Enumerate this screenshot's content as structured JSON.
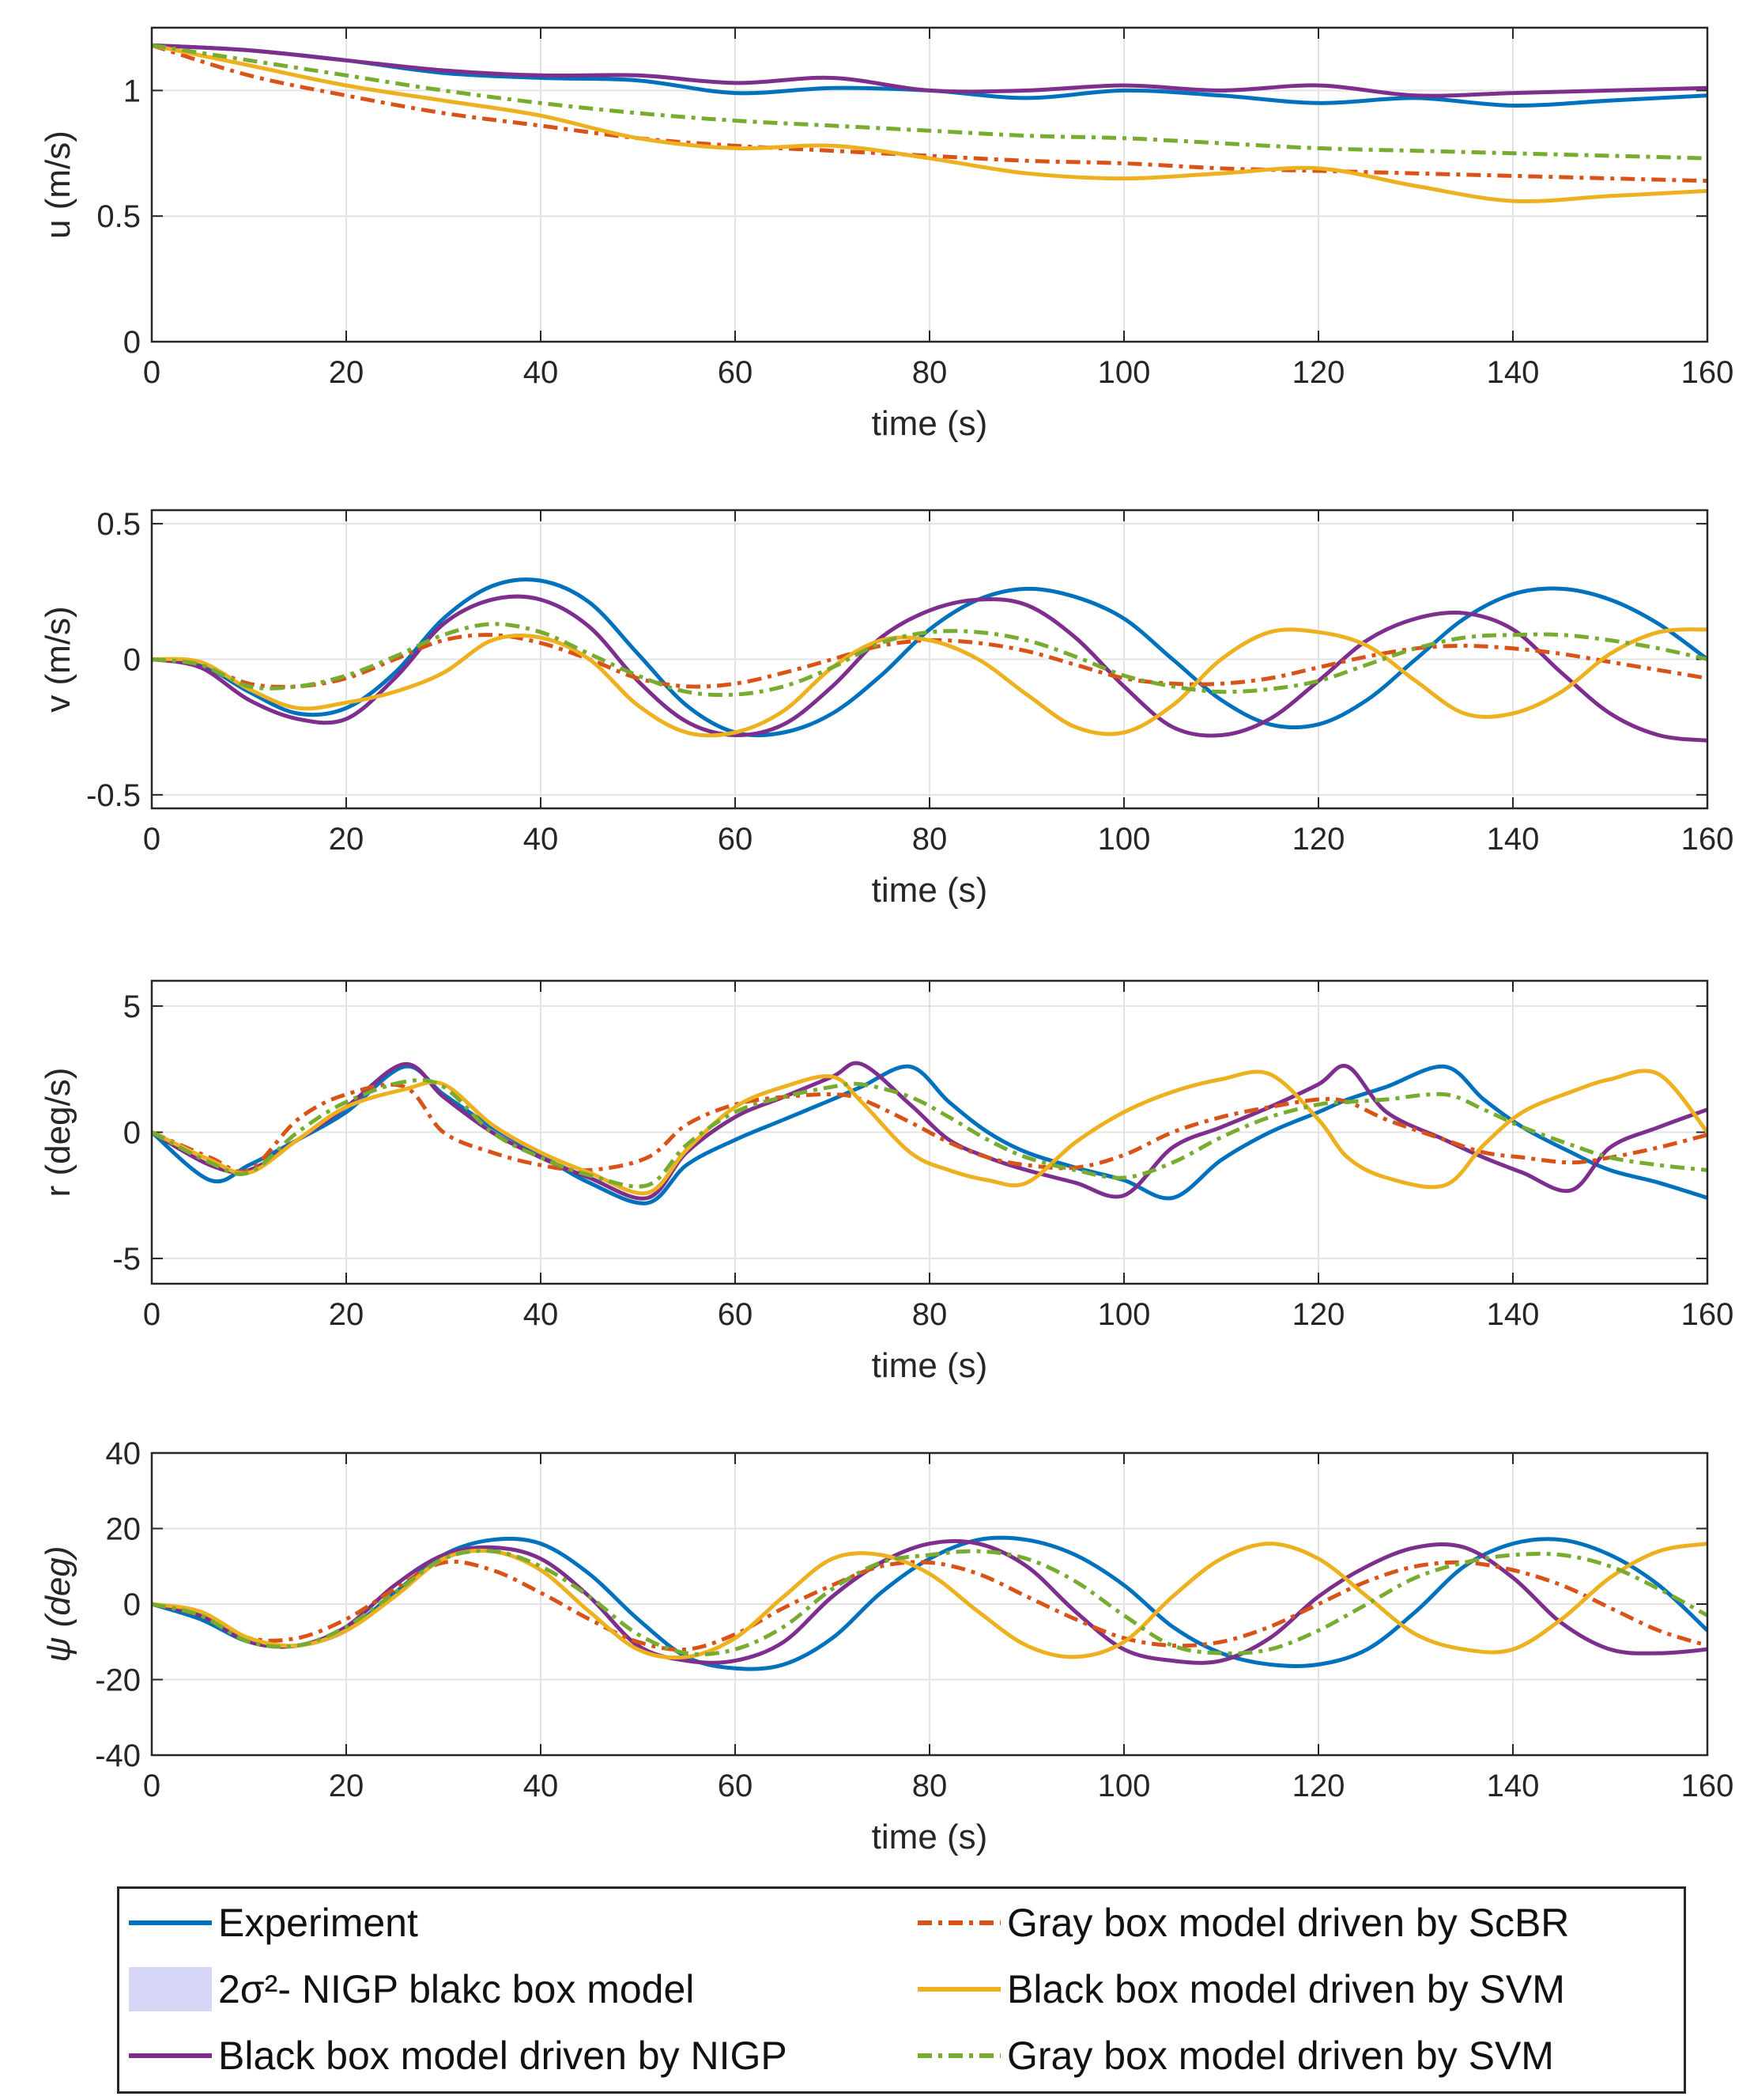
{
  "chart_data": [
    {
      "type": "line",
      "id": "u",
      "ylabel": "u (m/s)",
      "xlabel": "time (s)",
      "xlim": [
        0,
        160
      ],
      "ylim": [
        0,
        1.25
      ],
      "xticks": [
        "0",
        "20",
        "40",
        "60",
        "80",
        "100",
        "120",
        "140",
        "160"
      ],
      "yticks": [
        {
          "v": 0,
          "t": "0"
        },
        {
          "v": 0.5,
          "t": "0.5"
        },
        {
          "v": 1,
          "t": "1"
        }
      ],
      "grid": true,
      "x": [
        0,
        10,
        20,
        30,
        40,
        50,
        60,
        70,
        80,
        90,
        100,
        110,
        120,
        130,
        140,
        150,
        160
      ],
      "series": [
        {
          "name": "Experiment",
          "values": [
            1.18,
            1.16,
            1.12,
            1.07,
            1.05,
            1.04,
            0.99,
            1.01,
            1.0,
            0.97,
            1.0,
            0.98,
            0.95,
            0.97,
            0.94,
            0.96,
            0.98
          ]
        },
        {
          "name": "Black box model driven by NIGP",
          "values": [
            1.18,
            1.16,
            1.12,
            1.08,
            1.06,
            1.06,
            1.03,
            1.05,
            1.0,
            1.0,
            1.02,
            1.0,
            1.02,
            0.98,
            0.99,
            1.0,
            1.01
          ]
        },
        {
          "name": "Gray box model driven by ScBR",
          "values": [
            1.18,
            1.06,
            0.98,
            0.91,
            0.86,
            0.81,
            0.78,
            0.76,
            0.74,
            0.72,
            0.71,
            0.69,
            0.68,
            0.67,
            0.66,
            0.65,
            0.64
          ]
        },
        {
          "name": "Black box model driven by SVM",
          "values": [
            1.18,
            1.1,
            1.02,
            0.96,
            0.9,
            0.81,
            0.77,
            0.78,
            0.73,
            0.67,
            0.65,
            0.67,
            0.69,
            0.62,
            0.56,
            0.58,
            0.6
          ]
        },
        {
          "name": "Gray box model driven by SVM",
          "values": [
            1.18,
            1.12,
            1.06,
            1.0,
            0.95,
            0.91,
            0.88,
            0.86,
            0.84,
            0.82,
            0.81,
            0.79,
            0.77,
            0.76,
            0.75,
            0.74,
            0.73
          ]
        }
      ]
    },
    {
      "type": "line",
      "id": "v",
      "ylabel": "v (m/s)",
      "xlabel": "time (s)",
      "xlim": [
        0,
        160
      ],
      "ylim": [
        -0.55,
        0.55
      ],
      "xticks": [
        "0",
        "20",
        "40",
        "60",
        "80",
        "100",
        "120",
        "140",
        "160"
      ],
      "yticks": [
        {
          "v": -0.5,
          "t": "-0.5"
        },
        {
          "v": 0,
          "t": "0"
        },
        {
          "v": 0.5,
          "t": "0.5"
        }
      ],
      "grid": true,
      "x": [
        0,
        5,
        10,
        15,
        20,
        25,
        30,
        35,
        40,
        45,
        50,
        55,
        60,
        65,
        70,
        75,
        80,
        85,
        90,
        95,
        100,
        105,
        110,
        115,
        120,
        125,
        130,
        135,
        140,
        145,
        150,
        155,
        160
      ],
      "series": [
        {
          "name": "Experiment",
          "values": [
            0,
            -0.02,
            -0.12,
            -0.2,
            -0.18,
            -0.05,
            0.15,
            0.27,
            0.29,
            0.21,
            0.02,
            -0.17,
            -0.27,
            -0.27,
            -0.2,
            -0.06,
            0.11,
            0.22,
            0.26,
            0.23,
            0.15,
            0.0,
            -0.15,
            -0.24,
            -0.24,
            -0.15,
            0.0,
            0.15,
            0.24,
            0.26,
            0.22,
            0.13,
            0.0
          ]
        },
        {
          "name": "Black box model driven by NIGP",
          "values": [
            0,
            -0.03,
            -0.15,
            -0.22,
            -0.22,
            -0.07,
            0.13,
            0.22,
            0.22,
            0.12,
            -0.08,
            -0.23,
            -0.28,
            -0.24,
            -0.1,
            0.08,
            0.18,
            0.22,
            0.2,
            0.08,
            -0.1,
            -0.25,
            -0.28,
            -0.22,
            -0.08,
            0.07,
            0.15,
            0.17,
            0.11,
            -0.05,
            -0.2,
            -0.28,
            -0.3
          ]
        },
        {
          "name": "Gray box model driven by ScBR",
          "values": [
            0,
            -0.02,
            -0.09,
            -0.1,
            -0.07,
            0.0,
            0.07,
            0.09,
            0.06,
            0.0,
            -0.07,
            -0.1,
            -0.09,
            -0.05,
            0.0,
            0.05,
            0.07,
            0.06,
            0.03,
            -0.02,
            -0.07,
            -0.09,
            -0.09,
            -0.07,
            -0.03,
            0.01,
            0.04,
            0.05,
            0.04,
            0.02,
            -0.01,
            -0.04,
            -0.07
          ]
        },
        {
          "name": "Black box model driven by SVM",
          "values": [
            0,
            -0.01,
            -0.11,
            -0.18,
            -0.16,
            -0.12,
            -0.05,
            0.07,
            0.08,
            0.0,
            -0.17,
            -0.27,
            -0.27,
            -0.19,
            -0.03,
            0.07,
            0.07,
            0.0,
            -0.13,
            -0.25,
            -0.27,
            -0.17,
            0.0,
            0.1,
            0.1,
            0.05,
            -0.08,
            -0.2,
            -0.2,
            -0.12,
            0.02,
            0.1,
            0.11
          ]
        },
        {
          "name": "Gray box model driven by SVM",
          "values": [
            0,
            -0.02,
            -0.1,
            -0.1,
            -0.06,
            0.01,
            0.09,
            0.13,
            0.1,
            0.02,
            -0.06,
            -0.12,
            -0.13,
            -0.1,
            -0.03,
            0.06,
            0.1,
            0.1,
            0.07,
            0.01,
            -0.06,
            -0.1,
            -0.12,
            -0.11,
            -0.08,
            -0.02,
            0.04,
            0.08,
            0.09,
            0.09,
            0.07,
            0.04,
            0.0
          ]
        }
      ]
    },
    {
      "type": "line",
      "id": "r",
      "ylabel": "r (deg/s)",
      "xlabel": "time (s)",
      "xlim": [
        0,
        160
      ],
      "ylim": [
        -6,
        6
      ],
      "xticks": [
        "0",
        "20",
        "40",
        "60",
        "80",
        "100",
        "120",
        "140",
        "160"
      ],
      "yticks": [
        {
          "v": -5,
          "t": "-5"
        },
        {
          "v": 0,
          "t": "0"
        },
        {
          "v": 5,
          "t": "5"
        }
      ],
      "grid": true,
      "x": [
        0,
        6,
        10,
        15,
        20,
        26,
        30,
        35,
        40,
        45,
        51,
        55,
        60,
        65,
        70,
        73,
        78,
        82,
        86,
        90,
        95,
        100,
        105,
        110,
        115,
        120,
        123,
        127,
        133,
        137,
        141,
        146,
        150,
        155,
        160
      ],
      "series": [
        {
          "name": "Experiment",
          "values": [
            0,
            -1.9,
            -1.3,
            -0.3,
            0.8,
            2.6,
            1.5,
            0.2,
            -0.9,
            -2.0,
            -2.8,
            -1.3,
            -0.3,
            0.5,
            1.3,
            1.8,
            2.6,
            1.2,
            0.0,
            -0.8,
            -1.4,
            -1.9,
            -2.6,
            -1.1,
            0.0,
            0.8,
            1.3,
            1.8,
            2.6,
            1.3,
            0.2,
            -0.8,
            -1.5,
            -2.0,
            -2.6
          ]
        },
        {
          "name": "Black box model driven by NIGP",
          "values": [
            0,
            -1.3,
            -1.5,
            -0.3,
            1.0,
            2.7,
            1.4,
            0.0,
            -1.0,
            -1.8,
            -2.6,
            -0.8,
            0.6,
            1.4,
            2.2,
            2.7,
            1.1,
            -0.3,
            -1.0,
            -1.5,
            -2.0,
            -2.5,
            -0.6,
            0.2,
            1.0,
            1.9,
            2.6,
            0.8,
            -0.3,
            -1.0,
            -1.6,
            -2.3,
            -0.6,
            0.2,
            0.9
          ]
        },
        {
          "name": "Gray box model driven by ScBR",
          "values": [
            0,
            -1.0,
            -1.5,
            0.5,
            1.5,
            1.8,
            0.0,
            -0.8,
            -1.3,
            -1.5,
            -1.0,
            0.3,
            1.1,
            1.4,
            1.5,
            1.3,
            0.4,
            -0.4,
            -1.0,
            -1.3,
            -1.4,
            -0.9,
            0.0,
            0.6,
            1.0,
            1.3,
            1.2,
            0.5,
            -0.3,
            -0.8,
            -1.0,
            -1.2,
            -1.0,
            -0.6,
            -0.1
          ]
        },
        {
          "name": "Black box model driven by SVM",
          "values": [
            0,
            -1.1,
            -1.6,
            -0.3,
            1.0,
            1.7,
            1.9,
            0.3,
            -0.8,
            -1.6,
            -2.4,
            -0.7,
            1.0,
            1.8,
            2.2,
            1.2,
            -0.8,
            -1.5,
            -1.9,
            -2.0,
            -0.4,
            0.8,
            1.6,
            2.1,
            2.3,
            0.5,
            -1.0,
            -1.8,
            -2.1,
            -0.5,
            0.8,
            1.6,
            2.1,
            2.3,
            0.0
          ]
        },
        {
          "name": "Gray box model driven by SVM",
          "values": [
            0,
            -1.2,
            -1.6,
            0.0,
            1.2,
            2.0,
            1.8,
            0.0,
            -1.0,
            -1.7,
            -2.1,
            -0.5,
            0.8,
            1.4,
            1.8,
            1.9,
            1.4,
            0.6,
            -0.3,
            -1.0,
            -1.5,
            -1.8,
            -1.2,
            -0.2,
            0.6,
            1.1,
            1.2,
            1.3,
            1.5,
            0.9,
            0.2,
            -0.5,
            -1.0,
            -1.3,
            -1.5
          ]
        }
      ]
    },
    {
      "type": "line",
      "id": "psi",
      "ylabel": "ψ (deg)",
      "xlabel": "time (s)",
      "xlim": [
        0,
        160
      ],
      "ylim": [
        -40,
        40
      ],
      "xticks": [
        "0",
        "20",
        "40",
        "60",
        "80",
        "100",
        "120",
        "140",
        "160"
      ],
      "yticks": [
        {
          "v": -40,
          "t": "-40"
        },
        {
          "v": -20,
          "t": "-20"
        },
        {
          "v": 0,
          "t": "0"
        },
        {
          "v": 20,
          "t": "20"
        },
        {
          "v": 40,
          "t": "40"
        }
      ],
      "grid": true,
      "x": [
        0,
        5,
        10,
        15,
        20,
        25,
        30,
        35,
        40,
        45,
        50,
        55,
        60,
        65,
        70,
        75,
        80,
        85,
        90,
        95,
        100,
        105,
        110,
        115,
        120,
        125,
        130,
        135,
        140,
        145,
        150,
        155,
        160
      ],
      "series": [
        {
          "name": "Experiment",
          "values": [
            0,
            -4,
            -10,
            -11,
            -7,
            3,
            13,
            17,
            16,
            8,
            -4,
            -14,
            -17,
            -16,
            -9,
            3,
            12,
            17,
            17,
            13,
            5,
            -6,
            -13,
            -16,
            -16,
            -12,
            -2,
            10,
            16,
            17,
            13,
            5,
            -7
          ]
        },
        {
          "name": "Black box model driven by NIGP",
          "values": [
            0,
            -3,
            -10,
            -11,
            -6,
            5,
            13,
            15,
            12,
            2,
            -11,
            -15,
            -15,
            -10,
            2,
            11,
            16,
            16,
            10,
            -2,
            -12,
            -15,
            -15,
            -9,
            2,
            10,
            15,
            15,
            7,
            -5,
            -12,
            -13,
            -12
          ]
        },
        {
          "name": "Gray box model driven by ScBR",
          "values": [
            0,
            -3,
            -9,
            -9,
            -4,
            4,
            11,
            9,
            3,
            -4,
            -10,
            -12,
            -8,
            -1,
            5,
            10,
            11,
            8,
            2,
            -4,
            -9,
            -11,
            -10,
            -6,
            0,
            6,
            10,
            11,
            9,
            5,
            -1,
            -7,
            -11
          ]
        },
        {
          "name": "Black box model driven by SVM",
          "values": [
            0,
            -2,
            -9,
            -11,
            -7,
            2,
            12,
            14,
            9,
            -2,
            -12,
            -14,
            -9,
            2,
            12,
            13,
            8,
            -2,
            -11,
            -14,
            -10,
            2,
            12,
            16,
            12,
            2,
            -8,
            -12,
            -12,
            -4,
            7,
            14,
            16
          ]
        },
        {
          "name": "Gray box model driven by SVM",
          "values": [
            0,
            -3,
            -10,
            -11,
            -6,
            3,
            12,
            14,
            10,
            2,
            -8,
            -13,
            -12,
            -6,
            4,
            11,
            13,
            14,
            12,
            6,
            -3,
            -11,
            -13,
            -12,
            -7,
            0,
            7,
            11,
            13,
            13,
            10,
            4,
            -3
          ]
        }
      ]
    }
  ],
  "legend": {
    "items": [
      {
        "label": "Experiment",
        "style": "solid",
        "color": "#0072BD"
      },
      {
        "label": "2σ²- NIGP blakc box model",
        "style": "patch",
        "color": "#d6d6f7"
      },
      {
        "label": "Black box model driven by NIGP",
        "style": "solid",
        "color": "#7E2F8E"
      },
      {
        "label": "Gray box model driven by ScBR",
        "style": "dashdot",
        "color": "#D95319"
      },
      {
        "label": "Black box model driven by SVM",
        "style": "solid",
        "color": "#EDB120"
      },
      {
        "label": "Gray box model driven by SVM",
        "style": "dashdot",
        "color": "#77AC30"
      }
    ]
  },
  "colors": {
    "Experiment": "#0072BD",
    "Black box model driven by NIGP": "#7E2F8E",
    "Gray box model driven by ScBR": "#D95319",
    "Black box model driven by SVM": "#EDB120",
    "Gray box model driven by SVM": "#77AC30"
  }
}
